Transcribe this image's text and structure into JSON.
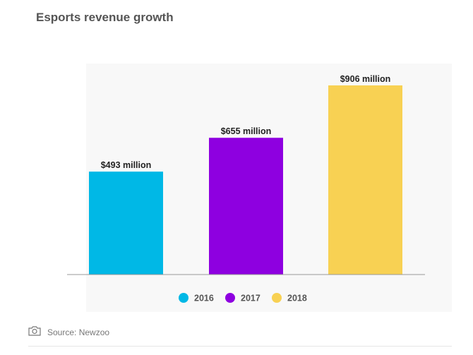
{
  "chart_data": {
    "type": "bar",
    "title": "Esports revenue growth",
    "categories": [
      "2016",
      "2017",
      "2018"
    ],
    "values": [
      493,
      655,
      906
    ],
    "value_labels": [
      "$493 million",
      "$655 million",
      "$906 million"
    ],
    "colors": [
      "#00b8e6",
      "#8e00e0",
      "#f8d153"
    ],
    "ylim": [
      0,
      1000
    ],
    "grid": false,
    "legend": {
      "position": "bottom-center",
      "entries": [
        "2016",
        "2017",
        "2018"
      ]
    },
    "xlabel": "",
    "ylabel": ""
  },
  "source": {
    "text": "Source: Newzoo",
    "icon": "camera-icon"
  }
}
